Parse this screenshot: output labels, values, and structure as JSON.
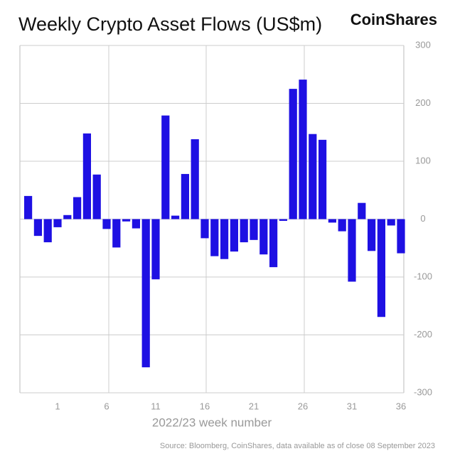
{
  "chart_data": {
    "type": "bar",
    "title": "Weekly Crypto Asset Flows (US$m)",
    "brand": "CoinShares",
    "x_label": "2022/23 week number",
    "source": "Source: Bloomberg, CoinShares, data available as of close 08 September 2023",
    "categories": [
      null,
      null,
      null,
      "1",
      null,
      null,
      null,
      null,
      "6",
      null,
      null,
      null,
      null,
      "11",
      null,
      null,
      null,
      null,
      "16",
      null,
      null,
      null,
      null,
      "21",
      null,
      null,
      null,
      null,
      "26",
      null,
      null,
      null,
      null,
      "31",
      null,
      null,
      null,
      null,
      "36"
    ],
    "values": [
      40,
      -29,
      -40,
      -14,
      7,
      38,
      148,
      77,
      -17,
      -49,
      -4,
      -16,
      -256,
      -104,
      179,
      6,
      78,
      138,
      -33,
      -64,
      -69,
      -56,
      -40,
      -36,
      -61,
      -83,
      -3,
      225,
      241,
      147,
      137,
      -6,
      -21,
      -108,
      28,
      -55,
      -169,
      -11,
      -59
    ],
    "color": "#1e10e3",
    "ylim": [
      -300,
      300
    ],
    "yticks": [
      -300,
      -200,
      -100,
      0,
      100,
      200,
      300
    ],
    "grid": true
  }
}
